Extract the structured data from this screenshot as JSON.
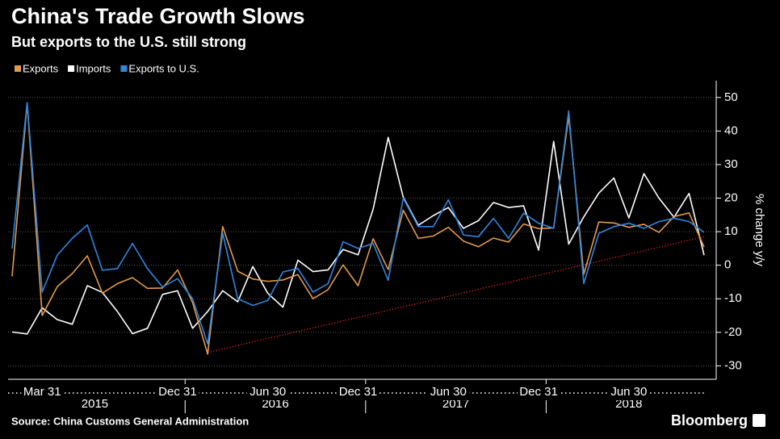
{
  "chart_data": {
    "type": "line",
    "title": "China's Trade Growth Slows",
    "subtitle": "But exports to the U.S. still strong",
    "source": "Source: China Customs General Administration",
    "brand": "Bloomberg",
    "y_label": "% change y/y",
    "categories": [
      "2015-01",
      "2015-02",
      "2015-03",
      "2015-04",
      "2015-05",
      "2015-06",
      "2015-07",
      "2015-08",
      "2015-09",
      "2015-10",
      "2015-11",
      "2015-12",
      "2016-01",
      "2016-02",
      "2016-03",
      "2016-04",
      "2016-05",
      "2016-06",
      "2016-07",
      "2016-08",
      "2016-09",
      "2016-10",
      "2016-11",
      "2016-12",
      "2017-01",
      "2017-02",
      "2017-03",
      "2017-04",
      "2017-05",
      "2017-06",
      "2017-07",
      "2017-08",
      "2017-09",
      "2017-10",
      "2017-11",
      "2017-12",
      "2018-01",
      "2018-02",
      "2018-03",
      "2018-04",
      "2018-05",
      "2018-06",
      "2018-07",
      "2018-08",
      "2018-09",
      "2018-10",
      "2018-11"
    ],
    "series": [
      {
        "name": "Exports",
        "color": "#e39a4c",
        "values": [
          -3.3,
          48.3,
          -15,
          -6.4,
          -2.5,
          2.8,
          -8.3,
          -5.5,
          -3.7,
          -6.9,
          -6.8,
          -1.4,
          -11.2,
          -26.5,
          11.5,
          -1.8,
          -4.1,
          -4.8,
          -4.4,
          -2.8,
          -10,
          -7.3,
          0.1,
          -6.1,
          7.9,
          -1.3,
          16.4,
          8,
          8.7,
          11.3,
          7.2,
          5.5,
          8.1,
          6.9,
          12.3,
          10.9,
          11.1,
          44.5,
          -2.7,
          12.9,
          12.6,
          11.3,
          12.2,
          9.8,
          14.5,
          15.6,
          5.4
        ]
      },
      {
        "name": "Imports",
        "color": "#ffffff",
        "values": [
          -19.9,
          -20.5,
          -12.7,
          -16.2,
          -17.6,
          -6.1,
          -8.1,
          -13.8,
          -20.4,
          -18.8,
          -8.7,
          -7.6,
          -18.8,
          -13.8,
          -7.6,
          -10.9,
          -0.4,
          -8.4,
          -12.5,
          1.5,
          -1.9,
          -1.4,
          4.7,
          3.1,
          16.7,
          38.1,
          20.3,
          11.9,
          14.8,
          17.2,
          11,
          13.3,
          18.7,
          17.2,
          17.7,
          4.5,
          36.9,
          6.3,
          14.4,
          21.5,
          26,
          14.1,
          27.3,
          20,
          14.3,
          21.4,
          3
        ]
      },
      {
        "name": "Exports to U.S.",
        "color": "#2f86e0",
        "values": [
          5,
          48.5,
          -8,
          3,
          8,
          12,
          -1.5,
          -1,
          6.5,
          -1,
          -6.5,
          -4,
          -10,
          -23.5,
          9.5,
          -10,
          -12,
          -10.5,
          -2,
          -1,
          -8,
          -5.5,
          7,
          5,
          6.5,
          -4.5,
          20,
          11.5,
          11.5,
          19.5,
          9,
          8.5,
          14,
          8,
          15.5,
          12.5,
          11,
          46,
          -5.5,
          9.5,
          11.5,
          12.5,
          11,
          13,
          14,
          13,
          9.8
        ]
      }
    ],
    "trend": {
      "color": "#d81e1e",
      "x": [
        "2016-02",
        "2018-11"
      ],
      "values": [
        -26,
        8.5
      ]
    },
    "ylim": [
      -34,
      55
    ],
    "yticks": [
      -30,
      -20,
      -10,
      0,
      10,
      20,
      30,
      40,
      50
    ],
    "grid": true,
    "legend": "top-left",
    "x_labels": [
      {
        "label": "Mar 31",
        "category": "2015-03"
      },
      {
        "label": "Dec 31",
        "category": "2015-12"
      },
      {
        "label": "Jun 30",
        "category": "2016-06"
      },
      {
        "label": "Dec 31",
        "category": "2016-12"
      },
      {
        "label": "Jun 30",
        "category": "2017-06"
      },
      {
        "label": "Dec 31",
        "category": "2017-12"
      },
      {
        "label": "Jun 30",
        "category": "2018-06"
      }
    ],
    "years": [
      "2015",
      "2016",
      "2017",
      "2018"
    ]
  }
}
